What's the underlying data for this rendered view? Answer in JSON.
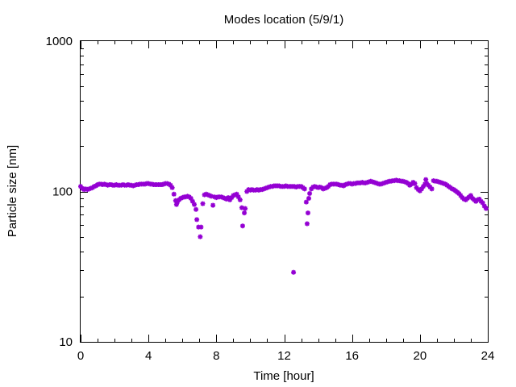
{
  "chart_data": {
    "type": "scatter",
    "title": "Modes location (5/9/1)",
    "xlabel": "Time [hour]",
    "ylabel": "Particle size [nm]",
    "xlim": [
      0,
      24
    ],
    "ylim": [
      10,
      1000
    ],
    "yscale": "log",
    "grid": false,
    "legend": "none",
    "marker": "asterisk",
    "x_ticks": [
      "0",
      "4",
      "8",
      "12",
      "16",
      "20",
      "24"
    ],
    "y_ticks": [
      "10",
      "100",
      "1000"
    ],
    "series": [
      {
        "color": "#9400d3",
        "points": [
          [
            0.0,
            108
          ],
          [
            0.1,
            105
          ],
          [
            0.2,
            103
          ],
          [
            0.3,
            104
          ],
          [
            0.4,
            103
          ],
          [
            0.5,
            104
          ],
          [
            0.6,
            105
          ],
          [
            0.7,
            106
          ],
          [
            0.8,
            108
          ],
          [
            0.9,
            109
          ],
          [
            1.0,
            111
          ],
          [
            1.1,
            112
          ],
          [
            1.2,
            112
          ],
          [
            1.3,
            111
          ],
          [
            1.4,
            112
          ],
          [
            1.5,
            111
          ],
          [
            1.6,
            110
          ],
          [
            1.7,
            111
          ],
          [
            1.8,
            111
          ],
          [
            1.9,
            110
          ],
          [
            2.0,
            110
          ],
          [
            2.1,
            111
          ],
          [
            2.2,
            110
          ],
          [
            2.3,
            110
          ],
          [
            2.4,
            110
          ],
          [
            2.5,
            111
          ],
          [
            2.6,
            110
          ],
          [
            2.7,
            110
          ],
          [
            2.8,
            111
          ],
          [
            2.9,
            110
          ],
          [
            3.0,
            110
          ],
          [
            3.1,
            109
          ],
          [
            3.2,
            110
          ],
          [
            3.3,
            111
          ],
          [
            3.4,
            111
          ],
          [
            3.5,
            112
          ],
          [
            3.6,
            112
          ],
          [
            3.7,
            112
          ],
          [
            3.8,
            112
          ],
          [
            3.9,
            113
          ],
          [
            4.0,
            113
          ],
          [
            4.1,
            112
          ],
          [
            4.2,
            112
          ],
          [
            4.3,
            111
          ],
          [
            4.4,
            111
          ],
          [
            4.5,
            111
          ],
          [
            4.6,
            111
          ],
          [
            4.7,
            111
          ],
          [
            4.8,
            111
          ],
          [
            4.9,
            112
          ],
          [
            5.0,
            113
          ],
          [
            5.1,
            113
          ],
          [
            5.2,
            112
          ],
          [
            5.3,
            110
          ],
          [
            5.4,
            106
          ],
          [
            5.5,
            96
          ],
          [
            5.6,
            87
          ],
          [
            5.65,
            82
          ],
          [
            5.7,
            85
          ],
          [
            5.8,
            88
          ],
          [
            5.9,
            90
          ],
          [
            6.0,
            91
          ],
          [
            6.1,
            92
          ],
          [
            6.2,
            92
          ],
          [
            6.3,
            93
          ],
          [
            6.4,
            92
          ],
          [
            6.5,
            90
          ],
          [
            6.6,
            86
          ],
          [
            6.7,
            82
          ],
          [
            6.8,
            76
          ],
          [
            6.85,
            65
          ],
          [
            6.95,
            58
          ],
          [
            7.05,
            50
          ],
          [
            7.1,
            58
          ],
          [
            7.2,
            83
          ],
          [
            7.3,
            95
          ],
          [
            7.4,
            96
          ],
          [
            7.5,
            95
          ],
          [
            7.6,
            94
          ],
          [
            7.7,
            93
          ],
          [
            7.8,
            81
          ],
          [
            7.9,
            92
          ],
          [
            8.0,
            91
          ],
          [
            8.1,
            92
          ],
          [
            8.2,
            92
          ],
          [
            8.3,
            92
          ],
          [
            8.4,
            91
          ],
          [
            8.5,
            90
          ],
          [
            8.6,
            89
          ],
          [
            8.7,
            91
          ],
          [
            8.8,
            88
          ],
          [
            8.9,
            91
          ],
          [
            9.0,
            94
          ],
          [
            9.1,
            95
          ],
          [
            9.2,
            96
          ],
          [
            9.3,
            92
          ],
          [
            9.4,
            88
          ],
          [
            9.5,
            78
          ],
          [
            9.55,
            59
          ],
          [
            9.65,
            72
          ],
          [
            9.7,
            77
          ],
          [
            9.8,
            100
          ],
          [
            9.9,
            103
          ],
          [
            10.0,
            102
          ],
          [
            10.1,
            103
          ],
          [
            10.2,
            102
          ],
          [
            10.3,
            102
          ],
          [
            10.4,
            103
          ],
          [
            10.5,
            102
          ],
          [
            10.6,
            103
          ],
          [
            10.7,
            103
          ],
          [
            10.8,
            104
          ],
          [
            10.9,
            105
          ],
          [
            11.0,
            106
          ],
          [
            11.1,
            107
          ],
          [
            11.2,
            108
          ],
          [
            11.3,
            108
          ],
          [
            11.4,
            109
          ],
          [
            11.5,
            109
          ],
          [
            11.6,
            109
          ],
          [
            11.7,
            109
          ],
          [
            11.8,
            108
          ],
          [
            11.9,
            108
          ],
          [
            12.0,
            108
          ],
          [
            12.1,
            109
          ],
          [
            12.2,
            108
          ],
          [
            12.3,
            108
          ],
          [
            12.4,
            108
          ],
          [
            12.5,
            108
          ],
          [
            12.55,
            29
          ],
          [
            12.6,
            108
          ],
          [
            12.7,
            107
          ],
          [
            12.8,
            108
          ],
          [
            12.9,
            108
          ],
          [
            13.0,
            108
          ],
          [
            13.1,
            106
          ],
          [
            13.2,
            104
          ],
          [
            13.3,
            85
          ],
          [
            13.35,
            61
          ],
          [
            13.4,
            72
          ],
          [
            13.45,
            90
          ],
          [
            13.5,
            97
          ],
          [
            13.6,
            104
          ],
          [
            13.7,
            107
          ],
          [
            13.8,
            108
          ],
          [
            13.9,
            107
          ],
          [
            14.0,
            106
          ],
          [
            14.1,
            107
          ],
          [
            14.2,
            106
          ],
          [
            14.3,
            104
          ],
          [
            14.4,
            105
          ],
          [
            14.5,
            106
          ],
          [
            14.6,
            108
          ],
          [
            14.7,
            111
          ],
          [
            14.8,
            112
          ],
          [
            14.9,
            112
          ],
          [
            15.0,
            112
          ],
          [
            15.1,
            112
          ],
          [
            15.2,
            111
          ],
          [
            15.3,
            110
          ],
          [
            15.4,
            110
          ],
          [
            15.5,
            109
          ],
          [
            15.6,
            111
          ],
          [
            15.7,
            112
          ],
          [
            15.8,
            113
          ],
          [
            15.9,
            113
          ],
          [
            16.0,
            112
          ],
          [
            16.1,
            113
          ],
          [
            16.2,
            113
          ],
          [
            16.3,
            114
          ],
          [
            16.4,
            114
          ],
          [
            16.5,
            114
          ],
          [
            16.6,
            115
          ],
          [
            16.7,
            114
          ],
          [
            16.8,
            114
          ],
          [
            16.9,
            115
          ],
          [
            17.0,
            116
          ],
          [
            17.1,
            117
          ],
          [
            17.2,
            116
          ],
          [
            17.3,
            115
          ],
          [
            17.4,
            114
          ],
          [
            17.5,
            113
          ],
          [
            17.6,
            112
          ],
          [
            17.7,
            112
          ],
          [
            17.8,
            113
          ],
          [
            17.9,
            114
          ],
          [
            18.0,
            115
          ],
          [
            18.1,
            116
          ],
          [
            18.2,
            117
          ],
          [
            18.3,
            117
          ],
          [
            18.4,
            118
          ],
          [
            18.5,
            118
          ],
          [
            18.6,
            119
          ],
          [
            18.7,
            118
          ],
          [
            18.8,
            118
          ],
          [
            18.9,
            117
          ],
          [
            19.0,
            117
          ],
          [
            19.1,
            116
          ],
          [
            19.2,
            115
          ],
          [
            19.3,
            113
          ],
          [
            19.4,
            110
          ],
          [
            19.5,
            112
          ],
          [
            19.6,
            115
          ],
          [
            19.7,
            113
          ],
          [
            19.8,
            106
          ],
          [
            19.9,
            103
          ],
          [
            20.0,
            101
          ],
          [
            20.1,
            104
          ],
          [
            20.2,
            108
          ],
          [
            20.3,
            112
          ],
          [
            20.35,
            120
          ],
          [
            20.4,
            113
          ],
          [
            20.5,
            110
          ],
          [
            20.6,
            107
          ],
          [
            20.7,
            104
          ],
          [
            20.8,
            118
          ],
          [
            20.9,
            117
          ],
          [
            21.0,
            117
          ],
          [
            21.1,
            116
          ],
          [
            21.2,
            115
          ],
          [
            21.3,
            114
          ],
          [
            21.4,
            113
          ],
          [
            21.5,
            112
          ],
          [
            21.6,
            110
          ],
          [
            21.7,
            108
          ],
          [
            21.8,
            106
          ],
          [
            21.9,
            104
          ],
          [
            22.0,
            103
          ],
          [
            22.1,
            101
          ],
          [
            22.2,
            99
          ],
          [
            22.3,
            97
          ],
          [
            22.4,
            94
          ],
          [
            22.5,
            91
          ],
          [
            22.6,
            89
          ],
          [
            22.7,
            88
          ],
          [
            22.8,
            90
          ],
          [
            22.9,
            92
          ],
          [
            23.0,
            94
          ],
          [
            23.1,
            90
          ],
          [
            23.2,
            88
          ],
          [
            23.3,
            86
          ],
          [
            23.4,
            88
          ],
          [
            23.5,
            89
          ],
          [
            23.6,
            86
          ],
          [
            23.7,
            84
          ],
          [
            23.8,
            80
          ],
          [
            23.9,
            77
          ]
        ]
      }
    ]
  }
}
